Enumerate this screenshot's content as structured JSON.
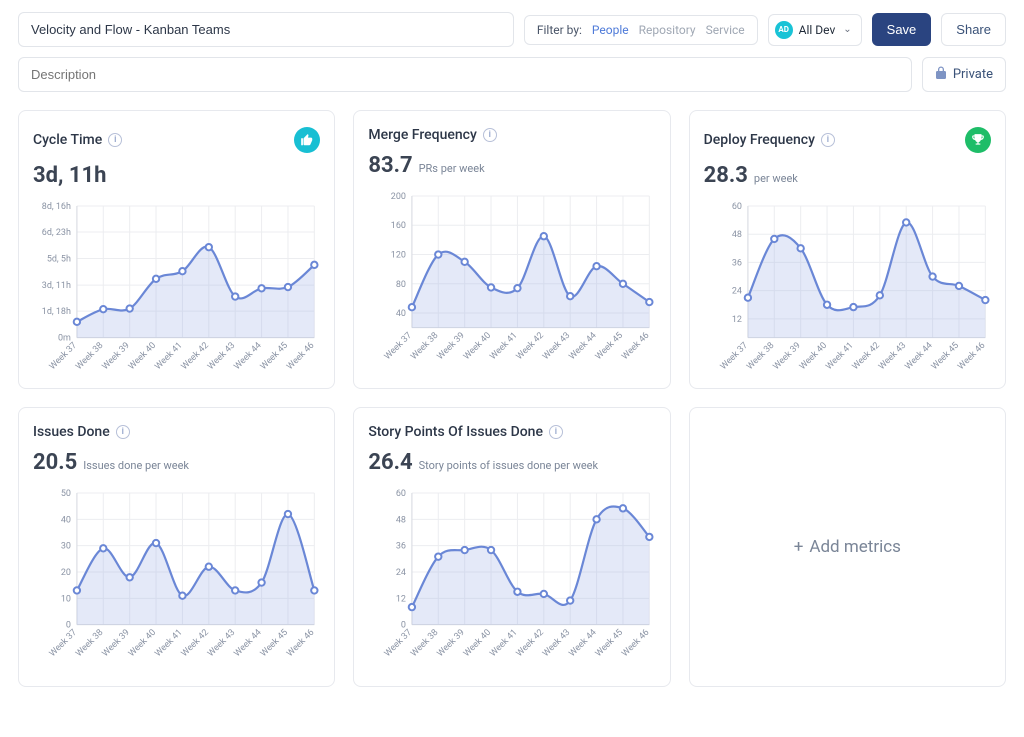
{
  "colors": {
    "line": "#6a87d6",
    "area": "#9db1e6",
    "thumbs_bg": "#18bfd3",
    "trophy_bg": "#1ebd68",
    "grid": "#ecedf0",
    "axis": "#d7dae1"
  },
  "header": {
    "title_value": "Velocity and Flow - Kanban Teams",
    "filter_label": "Filter by:",
    "filters": [
      "People",
      "Repository",
      "Service"
    ],
    "filter_active_index": 0,
    "team_badge": "AD",
    "team_label": "All Dev",
    "save_label": "Save",
    "share_label": "Share",
    "description_placeholder": "Description",
    "private_label": "Private"
  },
  "add_card_label": "Add metrics",
  "xlabels": [
    "Week 37",
    "Week 38",
    "Week 39",
    "Week 40",
    "Week 41",
    "Week 42",
    "Week 43",
    "Week 44",
    "Week 45",
    "Week 46"
  ],
  "cards": [
    {
      "id": "cycle-time",
      "title": "Cycle Time",
      "value": "3d, 11h",
      "unit": "",
      "badge": "thumbs",
      "yticks_labels": [
        "0m",
        "1d, 18h",
        "3d, 11h",
        "5d, 5h",
        "6d, 23h",
        "8d, 16h"
      ],
      "ylim": [
        0,
        208
      ],
      "yticks_values": [
        0,
        42,
        83,
        125,
        167,
        208
      ],
      "data": [
        25,
        45,
        46,
        93,
        105,
        143,
        65,
        78,
        80,
        115
      ]
    },
    {
      "id": "merge-frequency",
      "title": "Merge Frequency",
      "value": "83.7",
      "unit": "PRs per week",
      "badge": null,
      "yticks_labels": [
        "40",
        "80",
        "120",
        "160",
        "200"
      ],
      "ylim": [
        20,
        200
      ],
      "yticks_values": [
        40,
        80,
        120,
        160,
        200
      ],
      "data": [
        48,
        120,
        110,
        75,
        74,
        145,
        63,
        104,
        80,
        55
      ]
    },
    {
      "id": "deploy-frequency",
      "title": "Deploy Frequency",
      "value": "28.3",
      "unit": "per week",
      "badge": "trophy",
      "yticks_labels": [
        "12",
        "24",
        "36",
        "48",
        "60"
      ],
      "ylim": [
        4,
        60
      ],
      "yticks_values": [
        12,
        24,
        36,
        48,
        60
      ],
      "data": [
        21,
        46,
        42,
        18,
        17,
        22,
        53,
        30,
        26,
        20
      ]
    },
    {
      "id": "issues-done",
      "title": "Issues Done",
      "value": "20.5",
      "unit": "Issues done per week",
      "badge": null,
      "yticks_labels": [
        "0",
        "10",
        "20",
        "30",
        "40",
        "50"
      ],
      "ylim": [
        0,
        50
      ],
      "yticks_values": [
        0,
        10,
        20,
        30,
        40,
        50
      ],
      "data": [
        13,
        29,
        18,
        31,
        11,
        22,
        13,
        16,
        42,
        13
      ]
    },
    {
      "id": "story-points",
      "title": "Story Points Of Issues Done",
      "value": "26.4",
      "unit": "Story points of issues done per week",
      "badge": null,
      "yticks_labels": [
        "0",
        "12",
        "24",
        "36",
        "48",
        "60"
      ],
      "ylim": [
        0,
        60
      ],
      "yticks_values": [
        0,
        12,
        24,
        36,
        48,
        60
      ],
      "data": [
        8,
        31,
        34,
        34,
        15,
        14,
        11,
        48,
        53,
        40
      ]
    }
  ]
}
